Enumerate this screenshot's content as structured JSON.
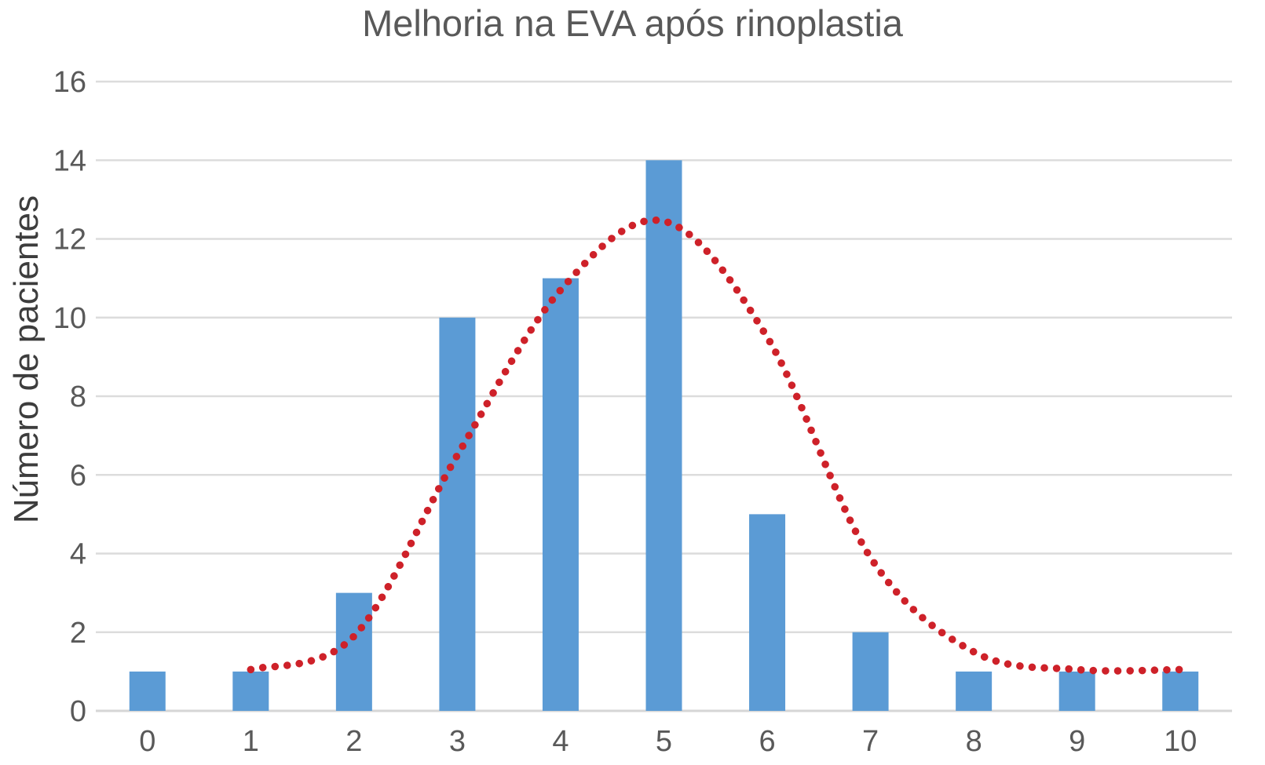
{
  "chart_data": {
    "type": "bar",
    "title": "Melhoria na EVA após rinoplastia",
    "xlabel": "",
    "ylabel": "Número de pacientes",
    "categories": [
      0,
      1,
      2,
      3,
      4,
      5,
      6,
      7,
      8,
      9,
      10
    ],
    "values": [
      1,
      1,
      3,
      10,
      11,
      14,
      5,
      2,
      1,
      1,
      1
    ],
    "ylim": [
      0,
      16
    ],
    "y_ticks": [
      0,
      2,
      4,
      6,
      8,
      10,
      12,
      14,
      16
    ],
    "grid": "horizontal",
    "legend": "none",
    "colors": {
      "bar": "#5B9BD5",
      "trend": "#CE2129",
      "grid": "#DCDCDC",
      "axis": "#D6D6D6",
      "tick_text": "#595959",
      "title_text": "#595959",
      "ylabel_text": "#3D3D3D"
    },
    "trend_line": {
      "style": "dotted",
      "x": [
        1,
        2,
        3,
        4,
        5,
        6,
        7,
        8,
        9,
        10
      ],
      "y": [
        1.05,
        1.9,
        6.5,
        10.7,
        12.45,
        9.5,
        3.9,
        1.5,
        1.05,
        1.05
      ]
    }
  }
}
